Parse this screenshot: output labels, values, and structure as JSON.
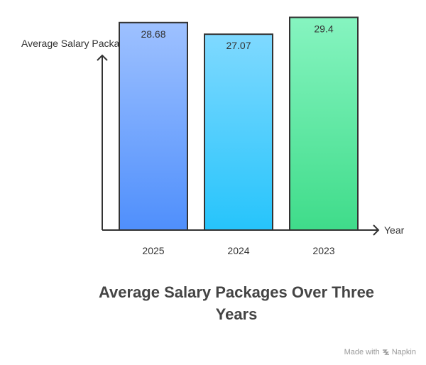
{
  "chart_data": {
    "type": "bar",
    "title": "Average Salary Packages Over Three Years",
    "ylabel": "Average Salary Package (INR LPA)",
    "xlabel": "Year",
    "categories": [
      "2025",
      "2024",
      "2023"
    ],
    "values": [
      28.68,
      27.07,
      29.4
    ],
    "ylim": [
      0,
      31.8
    ],
    "grid": false,
    "legend": "none",
    "bar_gradients": [
      {
        "top": "#9ec1ff",
        "bottom": "#4f8ffc"
      },
      {
        "top": "#7fd9ff",
        "bottom": "#26c4fb"
      },
      {
        "top": "#86f4c0",
        "bottom": "#3fdc8a"
      }
    ],
    "bar_stroke": "#333333"
  },
  "footer": {
    "made_with": "Made with",
    "brand": "Napkin",
    "brand_icon": "napkin-logo-icon"
  }
}
